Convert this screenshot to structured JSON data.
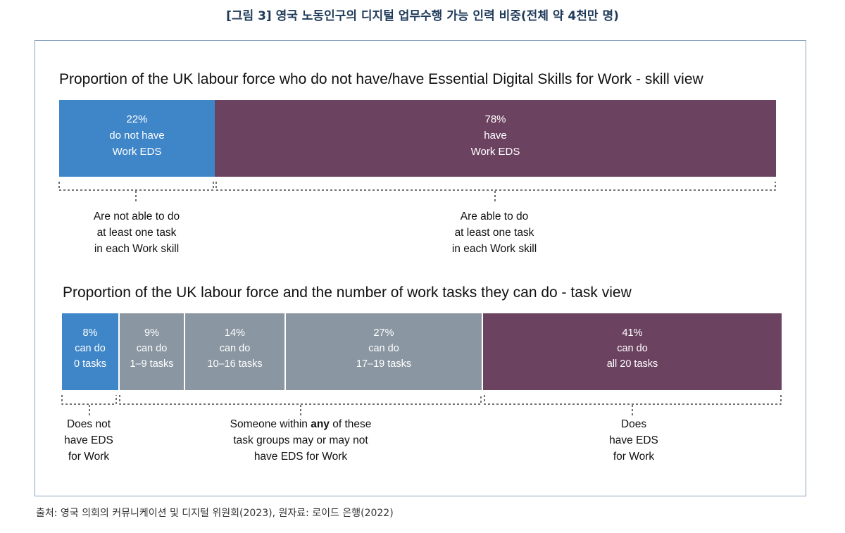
{
  "figure_title": "[그림 3] 영국 노동인구의 디지털 업무수행 가능 인력 비중(전체 약 4천만 명)",
  "source": "출처: 영국 의회의 커뮤니케이션 및 디지털 위원회(2023), 원자료: 로이드 은행(2022)",
  "colors": {
    "blue": "#3f86c9",
    "purple": "#6c4261",
    "grey": "#8a96a1",
    "title": "#1f3a5a",
    "frame": "#8aa3c0"
  },
  "chart_data": [
    {
      "type": "bar",
      "orientation": "horizontal-stacked",
      "title": "Proportion of the UK labour force who do not have/have Essential Digital Skills for Work - skill view",
      "unit": "%",
      "series": [
        {
          "value": 22,
          "lines": [
            "22%",
            "do not have",
            "Work EDS"
          ],
          "color": "#3f86c9"
        },
        {
          "value": 78,
          "lines": [
            "78%",
            "have",
            "Work EDS"
          ],
          "color": "#6c4261"
        }
      ],
      "annotations": [
        {
          "lines": [
            "Are not able to do",
            "at least one task",
            "in each Work skill"
          ]
        },
        {
          "lines": [
            "Are able to do",
            "at least one task",
            "in each Work skill"
          ]
        }
      ]
    },
    {
      "type": "bar",
      "orientation": "horizontal-stacked",
      "title": "Proportion of the UK labour force and the number of work tasks they can do - task view",
      "unit": "%",
      "series": [
        {
          "value": 8,
          "lines": [
            "8%",
            "can do",
            "0 tasks"
          ],
          "color": "#3f86c9"
        },
        {
          "value": 9,
          "lines": [
            "9%",
            "can do",
            "1–9 tasks"
          ],
          "color": "#8a96a1"
        },
        {
          "value": 14,
          "lines": [
            "14%",
            "can do",
            "10–16 tasks"
          ],
          "color": "#8a96a1"
        },
        {
          "value": 27,
          "lines": [
            "27%",
            "can do",
            "17–19 tasks"
          ],
          "color": "#8a96a1"
        },
        {
          "value": 41,
          "lines": [
            "41%",
            "can do",
            "all 20 tasks"
          ],
          "color": "#6c4261"
        }
      ],
      "annotations": [
        {
          "lines": [
            "Does not",
            "have EDS",
            "for Work"
          ]
        },
        {
          "pre": "Someone within ",
          "bold": "any",
          "post": " of these",
          "lines2": [
            "task groups may or may not",
            "have EDS for Work"
          ]
        },
        {
          "lines": [
            "Does",
            "have EDS",
            "for Work"
          ]
        }
      ]
    }
  ]
}
